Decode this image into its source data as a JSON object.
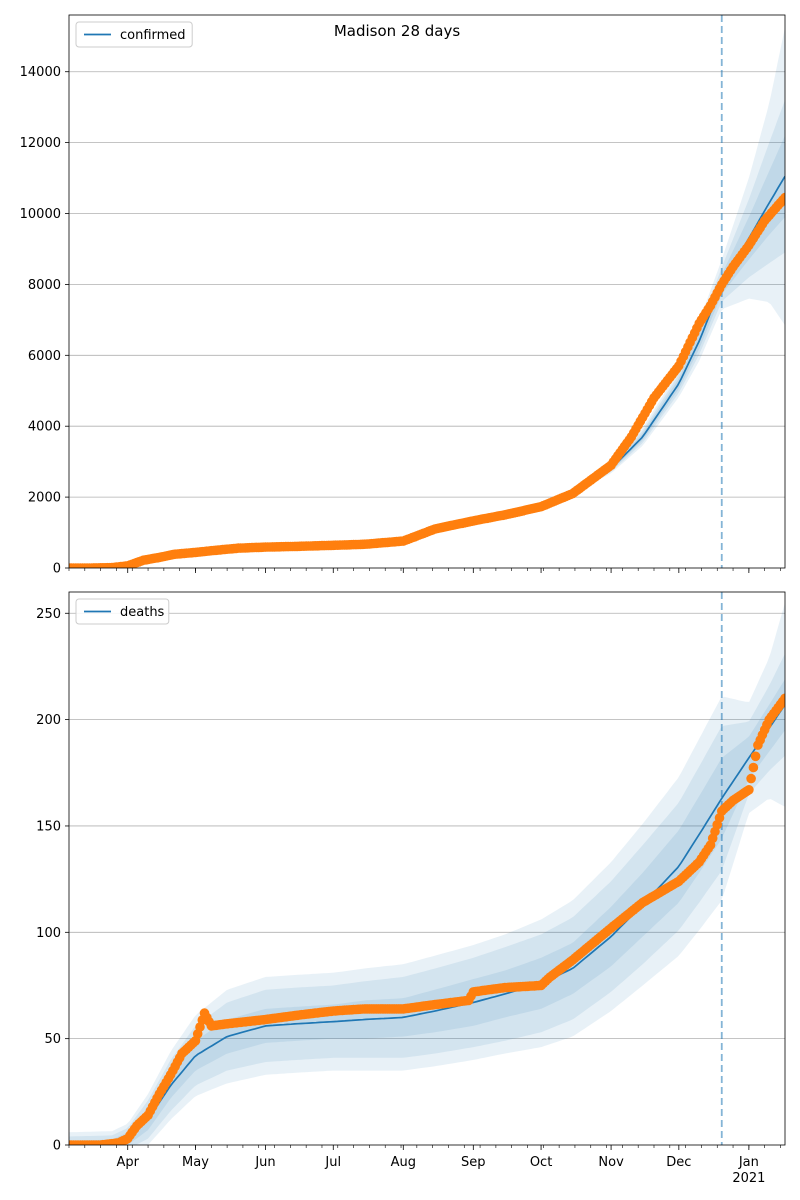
{
  "figure_title": "Madison 28 days",
  "chart_data": [
    {
      "type": "line",
      "series": [
        {
          "name": "confirmed",
          "kind": "model",
          "color": "#1f77b4",
          "x": [
            "2020-03-06",
            "2020-03-20",
            "2020-04-01",
            "2020-04-15",
            "2020-05-01",
            "2020-05-15",
            "2020-06-01",
            "2020-06-15",
            "2020-07-01",
            "2020-07-15",
            "2020-08-01",
            "2020-08-15",
            "2020-09-01",
            "2020-09-15",
            "2020-10-01",
            "2020-10-15",
            "2020-11-01",
            "2020-11-15",
            "2020-12-01",
            "2020-12-10",
            "2020-12-20",
            "2021-01-01",
            "2021-01-10",
            "2021-01-17"
          ],
          "y": [
            0,
            10,
            60,
            250,
            430,
            540,
            600,
            620,
            640,
            670,
            760,
            1050,
            1300,
            1480,
            1700,
            2100,
            2800,
            3700,
            5200,
            6400,
            8000,
            9300,
            10300,
            11050
          ],
          "band_widths": [
            [
              0,
              0,
              0,
              0,
              0,
              0,
              0,
              0,
              0,
              0,
              0,
              0,
              0,
              0,
              0,
              0,
              50,
              100,
              150,
              220,
              280,
              600,
              900,
              1150
            ],
            [
              0,
              0,
              0,
              0,
              0,
              0,
              0,
              0,
              0,
              0,
              0,
              0,
              0,
              0,
              0,
              0,
              90,
              170,
              260,
              380,
              480,
              1100,
              1700,
              2150
            ],
            [
              0,
              0,
              0,
              0,
              0,
              0,
              0,
              0,
              0,
              0,
              0,
              0,
              0,
              0,
              0,
              0,
              130,
              250,
              380,
              560,
              700,
              1700,
              2800,
              4200
            ]
          ]
        },
        {
          "name": "",
          "kind": "observed",
          "color": "#ff7f0e",
          "x": [
            "2020-03-06",
            "2020-03-15",
            "2020-03-25",
            "2020-04-01",
            "2020-04-08",
            "2020-04-15",
            "2020-04-22",
            "2020-05-01",
            "2020-05-10",
            "2020-05-20",
            "2020-06-01",
            "2020-06-15",
            "2020-07-01",
            "2020-07-15",
            "2020-08-01",
            "2020-08-15",
            "2020-09-01",
            "2020-09-15",
            "2020-10-01",
            "2020-10-15",
            "2020-11-01",
            "2020-11-10",
            "2020-11-20",
            "2020-12-01",
            "2020-12-10",
            "2020-12-15",
            "2020-12-20",
            "2020-12-25",
            "2021-01-01",
            "2021-01-08",
            "2021-01-17"
          ],
          "y": [
            0,
            0,
            10,
            60,
            220,
            300,
            390,
            440,
            500,
            560,
            590,
            610,
            640,
            670,
            760,
            1100,
            1330,
            1500,
            1730,
            2100,
            2900,
            3700,
            4800,
            5700,
            6900,
            7400,
            8000,
            8500,
            9100,
            9800,
            10450
          ]
        }
      ],
      "vertical_line": {
        "x": "2020-12-20",
        "style": "dashed"
      },
      "ylim": [
        0,
        15600
      ],
      "xlim": [
        "2020-03-06",
        "2021-01-17"
      ],
      "yticks": [
        0,
        2000,
        4000,
        6000,
        8000,
        10000,
        12000,
        14000
      ],
      "ytick_labels": [
        "0",
        "2000",
        "4000",
        "6000",
        "8000",
        "10000",
        "12000",
        "14000"
      ],
      "grid": "horizontal",
      "legend_placement": "upper left",
      "xtick_labels_shown": false
    },
    {
      "type": "line",
      "series": [
        {
          "name": "deaths",
          "kind": "model",
          "color": "#1f77b4",
          "x": [
            "2020-03-06",
            "2020-03-25",
            "2020-04-01",
            "2020-04-10",
            "2020-04-20",
            "2020-05-01",
            "2020-05-15",
            "2020-06-01",
            "2020-06-15",
            "2020-07-01",
            "2020-07-15",
            "2020-08-01",
            "2020-08-15",
            "2020-09-01",
            "2020-09-15",
            "2020-10-01",
            "2020-10-15",
            "2020-11-01",
            "2020-11-15",
            "2020-12-01",
            "2020-12-10",
            "2020-12-20",
            "2021-01-01",
            "2021-01-10",
            "2021-01-17"
          ],
          "y": [
            0,
            0.5,
            3,
            12,
            28,
            42,
            51,
            56,
            57,
            58,
            59,
            60,
            63,
            67,
            71,
            76,
            83,
            98,
            113,
            131,
            146,
            163,
            182,
            196,
            207
          ],
          "band_widths": [
            [
              2,
              2,
              3,
              5,
              6,
              7,
              8,
              8,
              8,
              8,
              9,
              9,
              10,
              11,
              11,
              12,
              12,
              14,
              15,
              17,
              18,
              19,
              10,
              11,
              12
            ],
            [
              4,
              4,
              5,
              9,
              12,
              14,
              16,
              17,
              17,
              17,
              18,
              19,
              20,
              21,
              22,
              23,
              24,
              26,
              28,
              30,
              32,
              34,
              17,
              20,
              24
            ],
            [
              6,
              6,
              7,
              12,
              16,
              19,
              22,
              23,
              23,
              23,
              24,
              25,
              26,
              27,
              28,
              30,
              32,
              35,
              38,
              42,
              45,
              48,
              26,
              33,
              48
            ]
          ]
        },
        {
          "name": "",
          "kind": "observed",
          "color": "#ff7f0e",
          "x": [
            "2020-03-06",
            "2020-03-20",
            "2020-03-28",
            "2020-04-01",
            "2020-04-05",
            "2020-04-10",
            "2020-04-15",
            "2020-04-20",
            "2020-04-25",
            "2020-05-01",
            "2020-05-05",
            "2020-05-08",
            "2020-05-15",
            "2020-06-01",
            "2020-06-15",
            "2020-07-01",
            "2020-07-15",
            "2020-08-01",
            "2020-08-15",
            "2020-08-30",
            "2020-09-01",
            "2020-09-15",
            "2020-10-01",
            "2020-10-05",
            "2020-10-15",
            "2020-11-01",
            "2020-11-15",
            "2020-12-01",
            "2020-12-10",
            "2020-12-15",
            "2020-12-20",
            "2020-12-25",
            "2021-01-01",
            "2021-01-05",
            "2021-01-10",
            "2021-01-17"
          ],
          "y": [
            0,
            0,
            1,
            3,
            9,
            14,
            24,
            33,
            43,
            49,
            62,
            56,
            57,
            59,
            61,
            63,
            64,
            64,
            66,
            68,
            72,
            74,
            75,
            79,
            87,
            102,
            114,
            124,
            133,
            141,
            157,
            162,
            167,
            188,
            200,
            210
          ]
        }
      ],
      "vertical_line": {
        "x": "2020-12-20",
        "style": "dashed"
      },
      "ylim": [
        0,
        260
      ],
      "xlim": [
        "2020-03-06",
        "2021-01-17"
      ],
      "yticks": [
        0,
        50,
        100,
        150,
        200,
        250
      ],
      "ytick_labels": [
        "0",
        "50",
        "100",
        "150",
        "200",
        "250"
      ],
      "xtick_labels": [
        "Apr",
        "May",
        "Jun",
        "Jul",
        "Aug",
        "Sep",
        "Oct",
        "Nov",
        "Dec",
        "Jan"
      ],
      "xtick_dates": [
        "2020-04-01",
        "2020-05-01",
        "2020-06-01",
        "2020-07-01",
        "2020-08-01",
        "2020-09-01",
        "2020-10-01",
        "2020-11-01",
        "2020-12-01",
        "2021-01-01"
      ],
      "year_label": "2021",
      "grid": "horizontal",
      "legend_placement": "upper left"
    }
  ]
}
